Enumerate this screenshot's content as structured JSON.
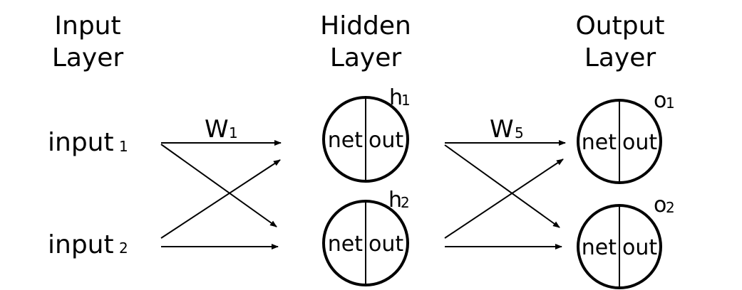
{
  "layers": {
    "input": {
      "line1": "Input",
      "line2": "Layer"
    },
    "hidden": {
      "line1": "Hidden",
      "line2": "Layer"
    },
    "output": {
      "line1": "Output",
      "line2": "Layer"
    }
  },
  "inputs": [
    {
      "text": "input",
      "sub": "1"
    },
    {
      "text": "input",
      "sub": "2"
    }
  ],
  "hidden_nodes": [
    {
      "label_main": "h",
      "label_sub": "1",
      "left": "net",
      "right": "out"
    },
    {
      "label_main": "h",
      "label_sub": "2",
      "left": "net",
      "right": "out"
    }
  ],
  "output_nodes": [
    {
      "label_main": "o",
      "label_sub": "1",
      "left": "net",
      "right": "out"
    },
    {
      "label_main": "o",
      "label_sub": "2",
      "left": "net",
      "right": "out"
    }
  ],
  "weights": {
    "w1": {
      "main": "W",
      "sub": "1"
    },
    "w5": {
      "main": "W",
      "sub": "5"
    }
  }
}
